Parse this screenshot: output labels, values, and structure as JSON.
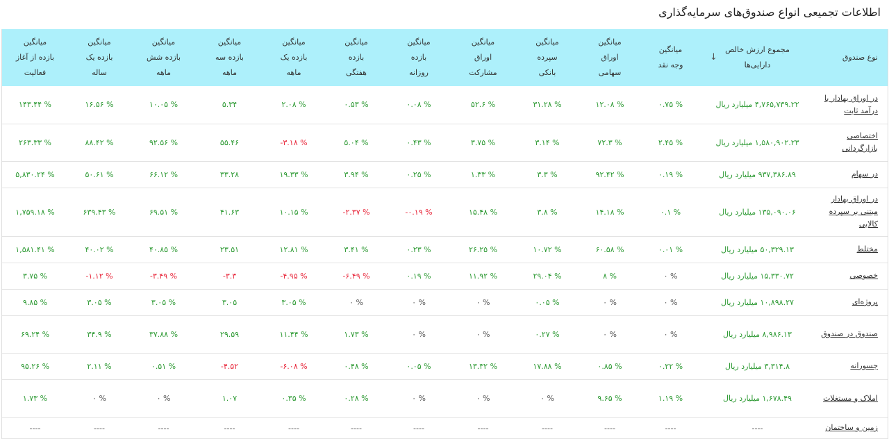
{
  "title": "اطلاعات تجمیعی انواع صندوق‌های سرمایه‌گذاری",
  "colors": {
    "header_bg": "#adf0fb",
    "positive": "#2e9a34",
    "negative": "#e8263a",
    "neutral": "#555555"
  },
  "headers": [
    "نوع صندوق",
    "مجموع ارزش خالص\nدارایی‌ها",
    "میانگین\nوجه نقد",
    "میانگین\nاوراق\nسهامی",
    "میانگین\nسپرده\nبانکی",
    "میانگین\nاوراق\nمشارکت",
    "میانگین\nبازده\nروزانه",
    "میانگین\nبازده\nهفتگی",
    "میانگین\nبازده یک\nماهه",
    "میانگین\nبازده سه\nماهه",
    "میانگین\nبازده شش\nماهه",
    "میانگین\nبازده یک\nساله",
    "میانگین\nبازده از آغاز\nفعالیت"
  ],
  "sort_icon": "arrow-down-icon",
  "rows": [
    [
      "در اوراق بهادار با درآمد ثابت",
      "۴,۷۶۵,۷۳۹.۲۲ میلیارد ریال",
      "۰.۷۵ %",
      "۱۲.۰۸ %",
      "۳۱.۲۸ %",
      "۵۲.۶ %",
      "۰.۰۸ %",
      "۰.۵۳ %",
      "۲.۰۸ %",
      "۵.۳۴",
      "۱۰.۰۵ %",
      "۱۶.۵۶ %",
      "۱۴۳.۴۴ %"
    ],
    [
      "اختصاصی بازارگردانی",
      "۱,۵۸۰,۹۰۲.۲۳ میلیارد ریال",
      "۲.۴۵ %",
      "۷۲.۳ %",
      "۳.۱۴ %",
      "۳.۷۵ %",
      "۰.۴۳ %",
      "۵.۰۴ %",
      "-۳.۱۸ %",
      "۵۵.۴۶",
      "۹۲.۵۶ %",
      "۸۸.۴۲ %",
      "۲۶۳.۳۳ %"
    ],
    [
      "در سهام",
      "۹۳۷,۳۸۶.۸۹ میلیارد ریال",
      "۰.۱۹ %",
      "۹۲.۴۲ %",
      "۳.۳ %",
      "۱.۳۳ %",
      "۰.۲۵ %",
      "۳.۹۴ %",
      "۱۹.۳۳ %",
      "۳۳.۲۸",
      "۶۶.۱۲ %",
      "۵۰.۶۱ %",
      "۵,۸۳۰.۲۴ %"
    ],
    [
      "در اوراق بهادار مبتنی بر سپرده کالایی",
      "۱۳۵,۰۹۰.۰۶ میلیارد ریال",
      "۰.۱ %",
      "۱۴.۱۸ %",
      "۳.۸ %",
      "۱۵.۴۸ %",
      "-۰.۱۹ %",
      "-۲.۳۷ %",
      "۱۰.۱۵ %",
      "۴۱.۶۳",
      "۶۹.۵۱ %",
      "۶۳۹.۴۳ %",
      "۱,۷۵۹.۱۸ %"
    ],
    [
      "مختلط",
      "۵۰,۳۲۹.۱۳ میلیارد ریال",
      "۰.۰۱ %",
      "۶۰.۵۸ %",
      "۱۰.۷۲ %",
      "۲۶.۲۵ %",
      "۰.۲۳ %",
      "۳.۴۱ %",
      "۱۲.۸۱ %",
      "۲۳.۵۱",
      "۴۰.۸۵ %",
      "۴۰.۰۲ %",
      "۱,۵۸۱.۴۱ %"
    ],
    [
      "خصوصی",
      "۱۵,۳۳۰.۷۲ میلیارد ریال",
      "۰ %",
      "۸ %",
      "۲۹.۰۴ %",
      "۱۱.۹۲ %",
      "۰.۱۹ %",
      "-۶.۴۹ %",
      "-۴.۹۵ %",
      "-۳.۳",
      "-۳.۴۹ %",
      "-۱.۱۲ %",
      "۳.۷۵ %"
    ],
    [
      "پروژه‌ای",
      "۱۰,۸۹۸.۲۷ میلیارد ریال",
      "۰ %",
      "۰ %",
      "۰.۰۵ %",
      "۰ %",
      "۰ %",
      "۰ %",
      "۳.۰۵ %",
      "۳.۰۵",
      "۳.۰۵ %",
      "۳.۰۵ %",
      "۹.۸۵ %"
    ],
    [
      "صندوق در صندوق",
      "۸,۹۸۶.۱۳ میلیارد ریال",
      "۰ %",
      "۰ %",
      "۰.۲۷ %",
      "۰ %",
      "۰ %",
      "۱.۷۳ %",
      "۱۱.۴۴ %",
      "۲۹.۵۹",
      "۳۷.۸۸ %",
      "۳۴.۹ %",
      "۶۹.۲۴ %"
    ],
    [
      "جسورانه",
      "۳,۳۱۴.۸ میلیارد ریال",
      "۰.۲۲ %",
      "۰.۸۵ %",
      "۱۷.۸۸ %",
      "۱۳.۳۲ %",
      "۰.۰۵ %",
      "۰.۴۸ %",
      "-۶.۰۸ %",
      "-۴.۵۲",
      "۰.۵۱ %",
      "۲.۱۱ %",
      "۹۵.۲۶ %"
    ],
    [
      "املاک و مستغلات",
      "۱,۶۷۸.۴۹ میلیارد ریال",
      "۱.۱۹ %",
      "۹.۶۵ %",
      "۰ %",
      "۰ %",
      "۰ %",
      "۰.۲۸ %",
      "۰.۳۵ %",
      "۱.۰۷",
      "۰ %",
      "۰ %",
      "۱.۷۳ %"
    ],
    [
      "زمین و ساختمان",
      "----",
      "----",
      "----",
      "----",
      "----",
      "----",
      "----",
      "----",
      "----",
      "----",
      "----",
      "----"
    ]
  ]
}
